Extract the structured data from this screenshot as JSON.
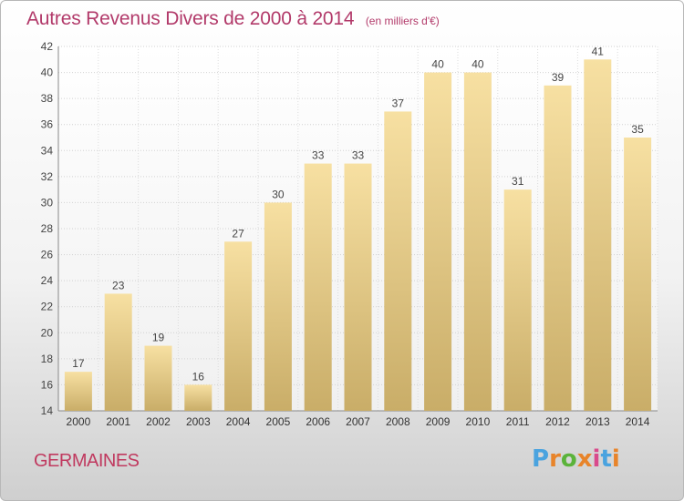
{
  "header": {
    "title": "Autres Revenus Divers de 2000 à 2014",
    "subtitle": "(en milliers d'€)"
  },
  "footer": {
    "commune": "GERMAINES",
    "logo_text": "Proxiti",
    "logo_colors": [
      "#4aa3df",
      "#e8842a",
      "#5bb33a",
      "#e8842a",
      "#d94a8c",
      "#4aa3df",
      "#e8842a"
    ]
  },
  "chart_data": {
    "type": "bar",
    "title": "Autres Revenus Divers de 2000 à 2014",
    "subtitle": "(en milliers d'€)",
    "xlabel": "",
    "ylabel": "",
    "categories": [
      "2000",
      "2001",
      "2002",
      "2003",
      "2004",
      "2005",
      "2006",
      "2007",
      "2008",
      "2009",
      "2010",
      "2011",
      "2012",
      "2013",
      "2014"
    ],
    "values": [
      17,
      23,
      19,
      16,
      27,
      30,
      33,
      33,
      37,
      40,
      40,
      31,
      39,
      41,
      35
    ],
    "ylim": [
      14,
      42
    ],
    "yticks": [
      14,
      16,
      18,
      20,
      22,
      24,
      26,
      28,
      30,
      32,
      34,
      36,
      38,
      40,
      42
    ],
    "grid": true,
    "legend": "none",
    "bar_color_top": "#f7e0a2",
    "bar_color_bottom": "#c9ad68",
    "title_color": "#b23a6a"
  }
}
